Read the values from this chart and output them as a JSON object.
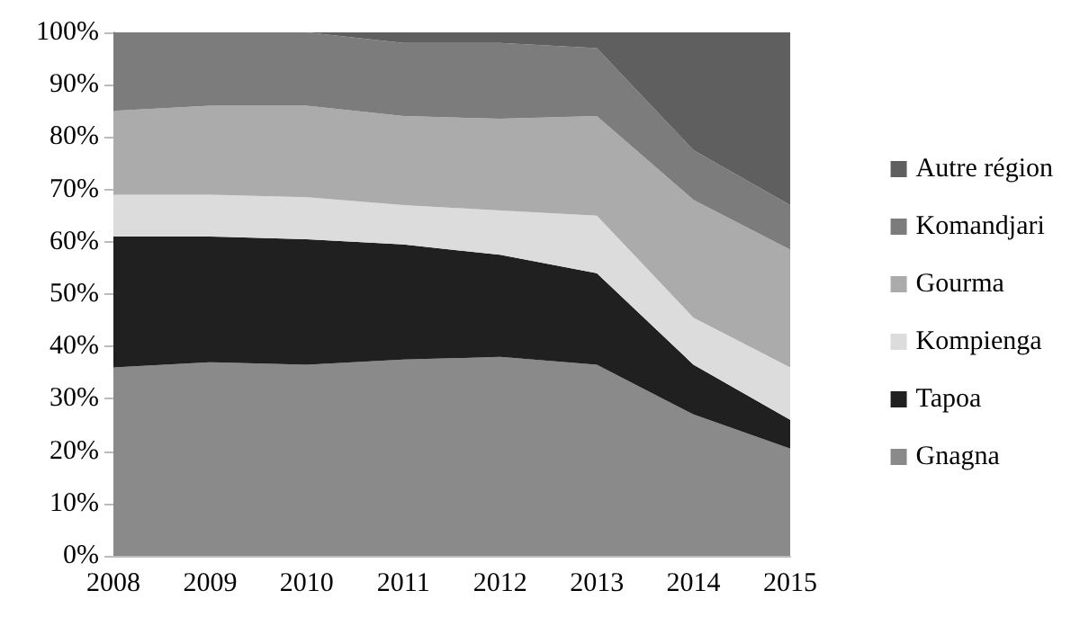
{
  "chart_data": {
    "type": "area",
    "stacked": true,
    "categories": [
      "2008",
      "2009",
      "2010",
      "2011",
      "2012",
      "2013",
      "2014",
      "2015"
    ],
    "series": [
      {
        "name": "Gnagna",
        "color": "#8a8a8a",
        "values": [
          36,
          37,
          36.5,
          37.5,
          38,
          36.5,
          27,
          20.5
        ]
      },
      {
        "name": "Tapoa",
        "color": "#202020",
        "values": [
          25,
          24,
          24,
          22,
          19.5,
          17.5,
          9.5,
          5.5
        ]
      },
      {
        "name": "Kompienga",
        "color": "#dcdcdc",
        "values": [
          8,
          8,
          8,
          7.5,
          8.5,
          11,
          9,
          10
        ]
      },
      {
        "name": "Gourma",
        "color": "#ababab",
        "values": [
          16,
          17,
          17.5,
          17,
          17.5,
          19,
          22.5,
          22.5
        ]
      },
      {
        "name": "Komandjari",
        "color": "#7c7c7c",
        "values": [
          15,
          14,
          14,
          14,
          14.5,
          13,
          9.5,
          8.5
        ]
      },
      {
        "name": "Autre région",
        "color": "#5f5f5f",
        "values": [
          0,
          0,
          0,
          2,
          2,
          3,
          22.5,
          33
        ]
      }
    ],
    "ylim": [
      0,
      100
    ],
    "yticks": [
      {
        "value": 0,
        "label": "0%"
      },
      {
        "value": 10,
        "label": "10%"
      },
      {
        "value": 20,
        "label": "20%"
      },
      {
        "value": 30,
        "label": "30%"
      },
      {
        "value": 40,
        "label": "40%"
      },
      {
        "value": 50,
        "label": "50%"
      },
      {
        "value": 60,
        "label": "60%"
      },
      {
        "value": 70,
        "label": "70%"
      },
      {
        "value": 80,
        "label": "80%"
      },
      {
        "value": 90,
        "label": "90%"
      },
      {
        "value": 100,
        "label": "100%"
      }
    ],
    "grid": false,
    "legend": "right"
  }
}
